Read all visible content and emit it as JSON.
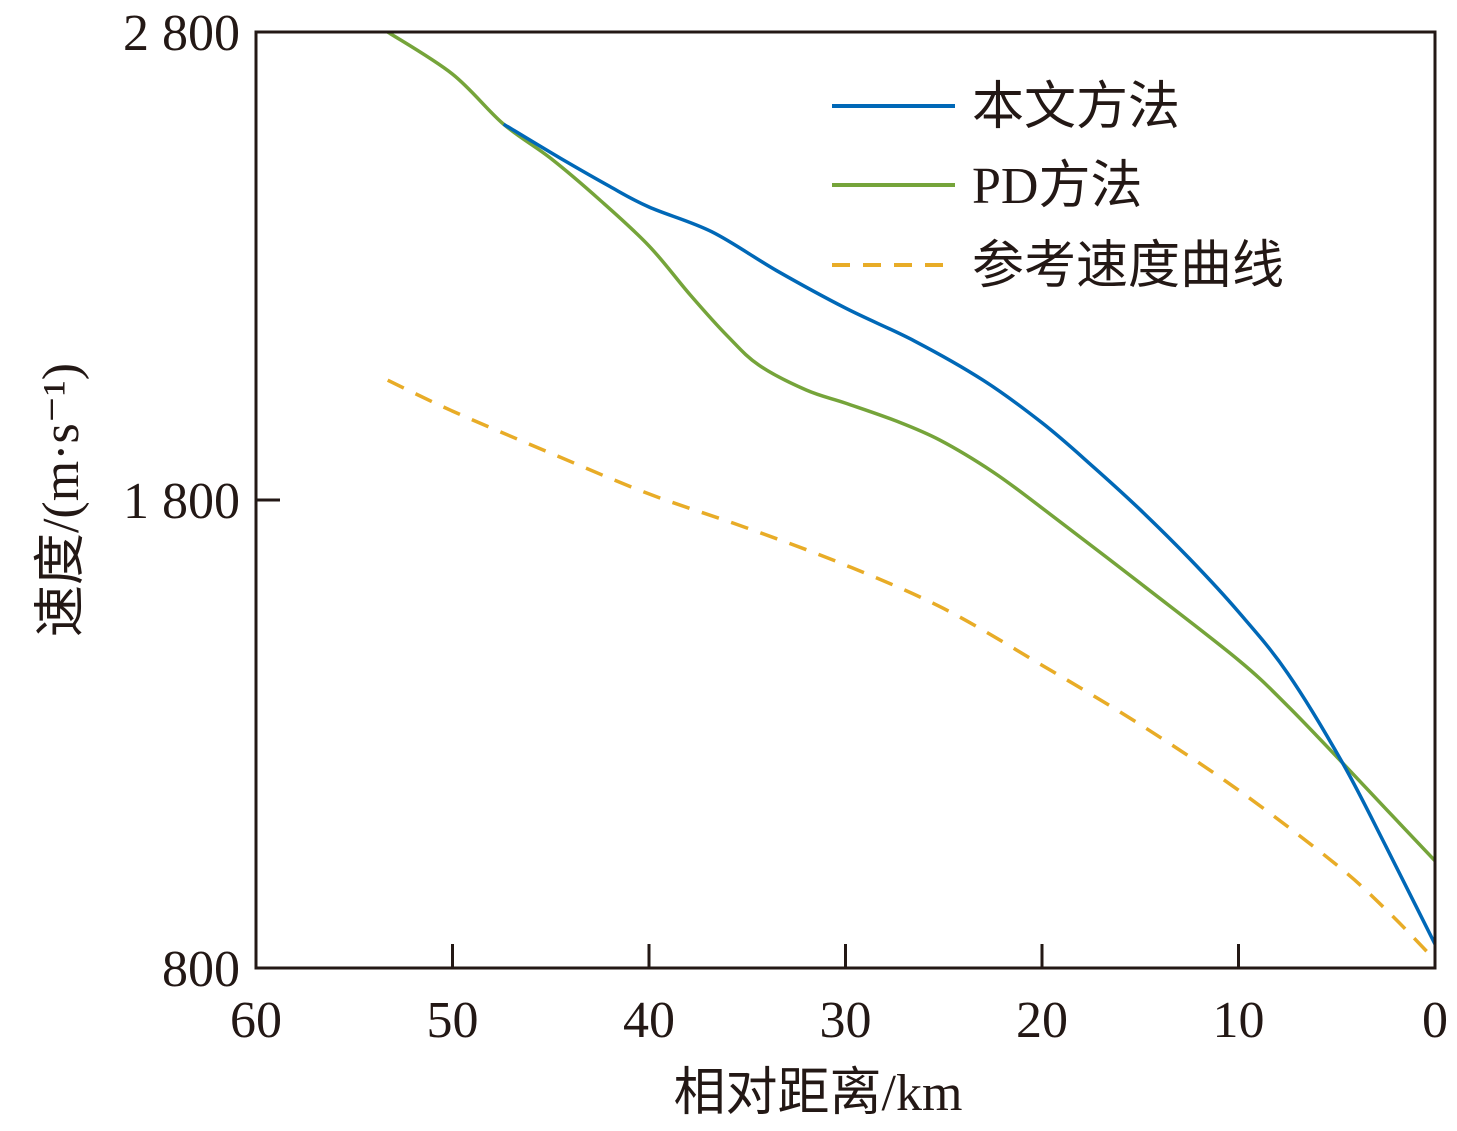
{
  "chart_data": {
    "type": "line",
    "title": "",
    "xlabel": "相对距离/km",
    "ylabel": "速度/(m·s⁻¹)",
    "xlim": [
      60,
      0
    ],
    "ylim": [
      800,
      2800
    ],
    "x_reversed": true,
    "grid": false,
    "legend_position": "top-right",
    "x_ticks": [
      60,
      50,
      40,
      30,
      20,
      10,
      0
    ],
    "x_tick_labels": [
      "60",
      "50",
      "40",
      "30",
      "20",
      "10",
      "0"
    ],
    "y_ticks": [
      800,
      1800,
      2800
    ],
    "y_tick_labels": [
      "800",
      "1 800",
      "2 800"
    ],
    "series": [
      {
        "name": "本文方法",
        "color": "#0068b7",
        "style": "solid",
        "x": [
          47.4,
          44.5,
          42.0,
          40.0,
          36.8,
          33.5,
          30.0,
          26.5,
          23.0,
          20.0,
          17.5,
          15.0,
          12.5,
          10.0,
          7.5,
          4.7,
          2.5,
          1.0,
          0.0
        ],
        "y": [
          2603,
          2530,
          2470,
          2426,
          2373,
          2290,
          2210,
          2140,
          2056,
          1965,
          1875,
          1779,
          1675,
          1561,
          1430,
          1238,
          1060,
          935,
          851
        ]
      },
      {
        "name": "PD方法",
        "color": "#75a43a",
        "style": "solid",
        "x": [
          53.3,
          50.0,
          47.4,
          45.0,
          42.5,
          40.0,
          37.9,
          36.0,
          34.4,
          32.0,
          30.0,
          27.5,
          25.2,
          22.5,
          20.0,
          15.0,
          10.0,
          7.5,
          4.7,
          2.5,
          0.0
        ],
        "y": [
          2800,
          2710,
          2603,
          2530,
          2441,
          2343,
          2238,
          2150,
          2088,
          2035,
          2007,
          1970,
          1928,
          1860,
          1783,
          1622,
          1458,
          1360,
          1238,
          1140,
          1029
        ]
      },
      {
        "name": "参考速度曲线",
        "color": "#e8ac27",
        "style": "dashed",
        "x": [
          53.3,
          50.0,
          45.0,
          40.0,
          35.0,
          30.0,
          25.0,
          20.0,
          15.0,
          10.0,
          5.0,
          2.5,
          0.0
        ],
        "y": [
          2056,
          1990,
          1900,
          1813,
          1740,
          1661,
          1568,
          1447,
          1320,
          1180,
          1020,
          925,
          817
        ]
      }
    ]
  }
}
